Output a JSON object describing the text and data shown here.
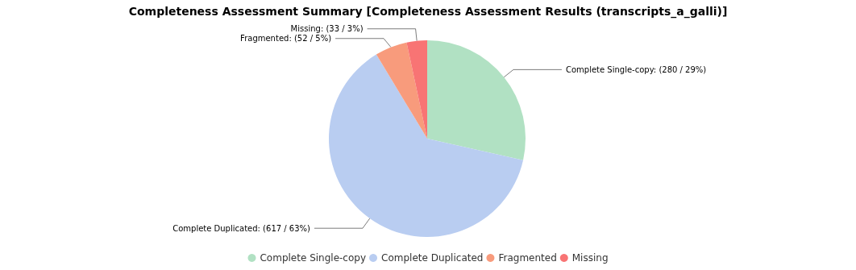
{
  "chart_data": {
    "type": "pie",
    "title": "Completeness Assessment Summary [Completeness Assessment Results (transcripts_a_galli)]",
    "categories": [
      "Complete Single-copy",
      "Complete Duplicated",
      "Fragmented",
      "Missing"
    ],
    "values": [
      280,
      617,
      52,
      33
    ],
    "colors": [
      "#b1e1c3",
      "#b9cdf1",
      "#f89b7c",
      "#f87474"
    ],
    "value_labels": [
      "Complete Single-copy: (280 / 29%)",
      "Complete Duplicated: (617 / 63%)",
      "Fragmented: (52 / 5%)",
      "Missing: (33 / 3%)"
    ],
    "legend": "bottom"
  }
}
